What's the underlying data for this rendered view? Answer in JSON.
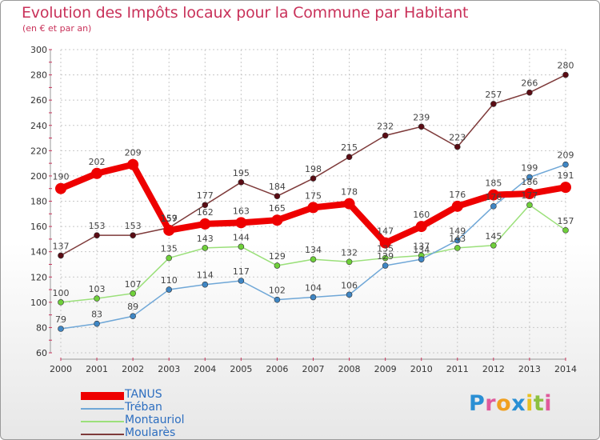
{
  "title": "Evolution des Impôts locaux pour la Commune par Habitant",
  "subtitle": "(en € et par an)",
  "logo": {
    "letters": [
      "P",
      "r",
      "o",
      "x",
      "i",
      "t",
      "i"
    ],
    "colors": [
      "#2a8fd4",
      "#e05a9c",
      "#f0a020",
      "#2a8fd4",
      "#e8c020",
      "#8cc040",
      "#e05a9c"
    ]
  },
  "legend": [
    {
      "label": "TANUS",
      "color": "#ee0000"
    },
    {
      "label": "Tréban",
      "color": "#6fa7d7"
    },
    {
      "label": "Montauriol",
      "color": "#9be07a"
    },
    {
      "label": "Moularès",
      "color": "#7e3a3a"
    }
  ],
  "chart_data": {
    "type": "line",
    "title": "Evolution des Impôts locaux pour la Commune par Habitant",
    "ylabel": "(en € et par an)",
    "xlabel": "",
    "categories": [
      "2000",
      "2001",
      "2002",
      "2003",
      "2004",
      "2005",
      "2006",
      "2007",
      "2008",
      "2009",
      "2010",
      "2011",
      "2012",
      "2013",
      "2014"
    ],
    "ylim": [
      60,
      300
    ],
    "yticks": [
      60,
      80,
      100,
      120,
      140,
      160,
      180,
      200,
      220,
      240,
      260,
      280,
      300
    ],
    "grid": true,
    "series": [
      {
        "name": "Moularès",
        "color": "#7e3a3a",
        "marker": "#5a0c14",
        "values": [
          137,
          153,
          153,
          159,
          177,
          195,
          184,
          198,
          215,
          232,
          239,
          223,
          257,
          266,
          280
        ]
      },
      {
        "name": "Montauriol",
        "color": "#9be07a",
        "marker": "#6fd03a",
        "values": [
          100,
          103,
          107,
          135,
          143,
          144,
          129,
          134,
          132,
          135,
          137,
          143,
          145,
          177,
          157
        ]
      },
      {
        "name": "Tréban",
        "color": "#6fa7d7",
        "marker": "#3f86c4",
        "values": [
          79,
          83,
          89,
          110,
          114,
          117,
          102,
          104,
          106,
          129,
          134,
          149,
          176,
          199,
          209
        ]
      },
      {
        "name": "TANUS",
        "color": "#ee0000",
        "marker": "#ee0000",
        "values": [
          190,
          202,
          209,
          157,
          162,
          163,
          165,
          175,
          178,
          147,
          160,
          176,
          185,
          186,
          191
        ]
      }
    ]
  }
}
